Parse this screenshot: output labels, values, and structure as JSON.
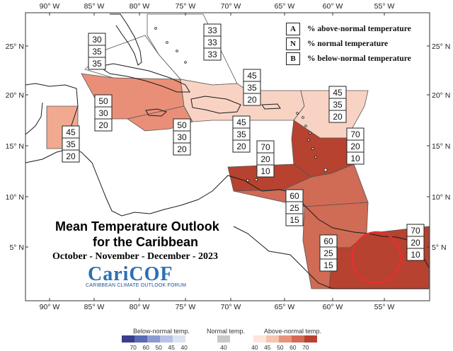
{
  "map": {
    "lon_ticks": [
      "90° W",
      "85° W",
      "80° W",
      "75° W",
      "70° W",
      "65° W",
      "60° W",
      "55° W"
    ],
    "lat_ticks": [
      "25° N",
      "20° N",
      "15° N",
      "10° N",
      "5° N"
    ],
    "colors": {
      "background": "#ffffff",
      "ocean": "#ffffff",
      "land": "#ffffff",
      "coast": "#1a1a1a",
      "above_45": "#f8d3c3",
      "above_50": "#e98f78",
      "above_60": "#d06b55",
      "above_70": "#b7422f",
      "guiana_circle": "#e53030"
    },
    "regions": [
      {
        "name": "bahamas-north",
        "probs": {
          "above": "33",
          "normal": "33",
          "below": "33"
        }
      },
      {
        "name": "cuba-northwest",
        "probs": {
          "above": "30",
          "normal": "35",
          "below": "35"
        }
      },
      {
        "name": "cayman-jamaica",
        "probs": {
          "above": "50",
          "normal": "30",
          "below": "20"
        }
      },
      {
        "name": "belize",
        "probs": {
          "above": "45",
          "normal": "35",
          "below": "20"
        }
      },
      {
        "name": "haiti-jamaica-south",
        "probs": {
          "above": "50",
          "normal": "30",
          "below": "20"
        }
      },
      {
        "name": "greater-antilles-east",
        "probs": {
          "above": "45",
          "normal": "35",
          "below": "20"
        }
      },
      {
        "name": "caribbean-central",
        "probs": {
          "above": "45",
          "normal": "35",
          "below": "20"
        }
      },
      {
        "name": "leeward-islands",
        "probs": {
          "above": "45",
          "normal": "35",
          "below": "20"
        }
      },
      {
        "name": "windward-islands",
        "probs": {
          "above": "70",
          "normal": "20",
          "below": "10"
        }
      },
      {
        "name": "abc-islands",
        "probs": {
          "above": "70",
          "normal": "20",
          "below": "10"
        }
      },
      {
        "name": "trinidad-guyana",
        "probs": {
          "above": "60",
          "normal": "25",
          "below": "15"
        }
      },
      {
        "name": "guyana-suriname",
        "probs": {
          "above": "60",
          "normal": "25",
          "below": "15"
        }
      },
      {
        "name": "french-guiana",
        "probs": {
          "above": "70",
          "normal": "20",
          "below": "10"
        }
      }
    ]
  },
  "legend": {
    "items": [
      {
        "letter": "A",
        "text": "% above-normal temperature"
      },
      {
        "letter": "N",
        "text": "% normal temperature"
      },
      {
        "letter": "B",
        "text": "% below-normal temperature"
      }
    ]
  },
  "title": {
    "line1": "Mean Temperature Outlook",
    "line2": "for the Caribbean",
    "period": "October - November - December - 2023"
  },
  "logo": {
    "name": "CariCOF",
    "subtitle": "CARIBBEAN CLIMATE OUTLOOK FORUM"
  },
  "colorbar": {
    "below_label": "Below-normal temp.",
    "normal_label": "Normal temp.",
    "above_label": "Above-normal temp.",
    "below_ticks": [
      "70",
      "60",
      "50",
      "45",
      "40"
    ],
    "normal_ticks": [
      "40"
    ],
    "above_ticks": [
      "40",
      "45",
      "50",
      "60",
      "70"
    ],
    "below_colors": [
      "#3a3f8c",
      "#5a6ab7",
      "#8a9ad4",
      "#b8c2e6",
      "#dde2f3"
    ],
    "normal_color": "#c8c8c8",
    "above_colors": [
      "#fbe5dc",
      "#f6c4b0",
      "#e9917b",
      "#d36a55",
      "#b7422f"
    ]
  }
}
